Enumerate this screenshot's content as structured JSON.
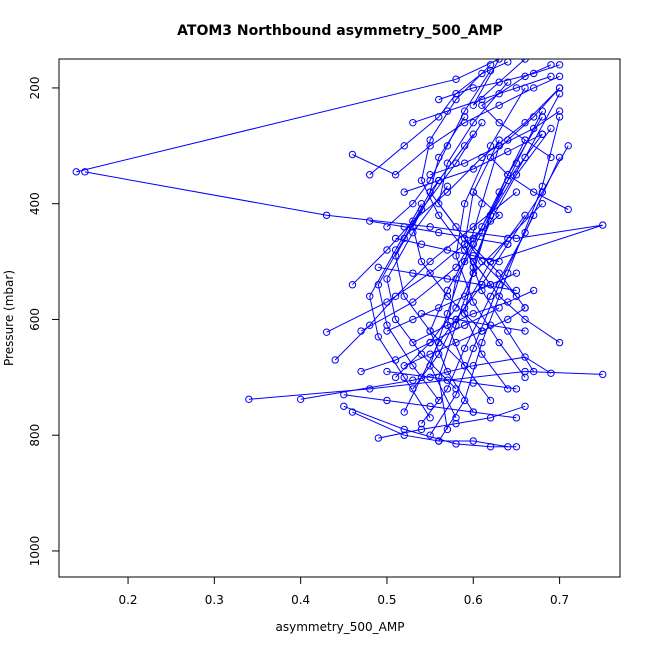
{
  "chart_data": {
    "type": "line",
    "title": "ATOM3 Northbound asymmetry_500_AMP",
    "xlabel": "asymmetry_500_AMP",
    "ylabel": "Pressure (mbar)",
    "xlim": [
      0.12,
      0.77
    ],
    "ylim": [
      1045,
      150
    ],
    "y_reversed": true,
    "x_ticks": [
      0.2,
      0.3,
      0.4,
      0.5,
      0.6,
      0.7
    ],
    "x_tick_labels": [
      "0.2",
      "0.3",
      "0.4",
      "0.5",
      "0.6",
      "0.7"
    ],
    "y_ticks": [
      200,
      400,
      600,
      800,
      1000
    ],
    "y_tick_labels": [
      "200",
      "400",
      "600",
      "800",
      "1000"
    ],
    "series_color": "#0000ff",
    "marker": "open-circle",
    "series": [
      {
        "x": [
          0.14,
          0.58,
          0.63,
          0.6,
          0.66
        ],
        "y": [
          345,
          185,
          150,
          230,
          150
        ]
      },
      {
        "x": [
          0.15,
          0.43,
          0.55,
          0.65,
          0.75,
          0.62
        ],
        "y": [
          345,
          420,
          440,
          460,
          437,
          500
        ]
      },
      {
        "x": [
          0.34,
          0.48,
          0.57,
          0.66,
          0.75
        ],
        "y": [
          738,
          720,
          705,
          690,
          695
        ]
      },
      {
        "x": [
          0.4,
          0.53,
          0.6,
          0.66,
          0.69
        ],
        "y": [
          738,
          705,
          680,
          665,
          693
        ]
      },
      {
        "x": [
          0.45,
          0.52,
          0.58,
          0.62,
          0.65
        ],
        "y": [
          750,
          790,
          815,
          820,
          820
        ]
      },
      {
        "x": [
          0.46,
          0.52,
          0.56,
          0.6,
          0.64
        ],
        "y": [
          760,
          800,
          810,
          810,
          820
        ]
      },
      {
        "x": [
          0.49,
          0.54,
          0.58,
          0.62,
          0.66
        ],
        "y": [
          805,
          790,
          780,
          770,
          750
        ]
      },
      {
        "x": [
          0.43,
          0.5,
          0.55,
          0.59,
          0.63,
          0.6
        ],
        "y": [
          622,
          570,
          520,
          470,
          420,
          380
        ]
      },
      {
        "x": [
          0.44,
          0.48,
          0.51,
          0.55,
          0.6,
          0.65
        ],
        "y": [
          670,
          610,
          560,
          500,
          440,
          380
        ]
      },
      {
        "x": [
          0.46,
          0.5,
          0.53,
          0.57,
          0.61,
          0.66,
          0.7
        ],
        "y": [
          540,
          480,
          430,
          380,
          320,
          260,
          200
        ]
      },
      {
        "x": [
          0.47,
          0.53,
          0.58,
          0.61,
          0.64,
          0.68
        ],
        "y": [
          620,
          570,
          510,
          440,
          360,
          280
        ]
      },
      {
        "x": [
          0.46,
          0.51,
          0.55,
          0.59,
          0.63,
          0.67,
          0.7
        ],
        "y": [
          315,
          350,
          300,
          260,
          230,
          200,
          180
        ]
      },
      {
        "x": [
          0.48,
          0.52,
          0.56,
          0.58,
          0.61,
          0.64
        ],
        "y": [
          350,
          300,
          250,
          210,
          175,
          155
        ]
      },
      {
        "x": [
          0.5,
          0.53,
          0.55,
          0.57,
          0.59,
          0.62
        ],
        "y": [
          440,
          400,
          360,
          300,
          240,
          170
        ]
      },
      {
        "x": [
          0.51,
          0.55,
          0.58,
          0.6,
          0.64,
          0.68
        ],
        "y": [
          700,
          640,
          580,
          520,
          460,
          400
        ]
      },
      {
        "x": [
          0.52,
          0.54,
          0.56,
          0.59,
          0.62,
          0.66
        ],
        "y": [
          760,
          700,
          640,
          580,
          500,
          420
        ]
      },
      {
        "x": [
          0.53,
          0.56,
          0.58,
          0.61,
          0.64,
          0.68,
          0.71
        ],
        "y": [
          720,
          660,
          600,
          540,
          470,
          380,
          300
        ]
      },
      {
        "x": [
          0.54,
          0.57,
          0.59,
          0.62,
          0.66,
          0.7
        ],
        "y": [
          780,
          720,
          650,
          560,
          450,
          320
        ]
      },
      {
        "x": [
          0.55,
          0.58,
          0.6,
          0.63,
          0.67
        ],
        "y": [
          800,
          730,
          650,
          540,
          420
        ]
      },
      {
        "x": [
          0.56,
          0.59,
          0.61,
          0.64,
          0.68,
          0.7
        ],
        "y": [
          810,
          740,
          640,
          520,
          370,
          250
        ]
      },
      {
        "x": [
          0.57,
          0.56,
          0.58,
          0.6,
          0.62,
          0.65,
          0.68
        ],
        "y": [
          790,
          700,
          610,
          520,
          420,
          330,
          240
        ]
      },
      {
        "x": [
          0.58,
          0.55,
          0.57,
          0.59,
          0.61,
          0.63
        ],
        "y": [
          770,
          680,
          590,
          500,
          400,
          300
        ]
      },
      {
        "x": [
          0.6,
          0.57,
          0.55,
          0.57,
          0.6,
          0.63,
          0.66
        ],
        "y": [
          760,
          690,
          620,
          550,
          470,
          380,
          290
        ]
      },
      {
        "x": [
          0.62,
          0.59,
          0.57,
          0.58,
          0.61,
          0.64,
          0.68
        ],
        "y": [
          740,
          680,
          610,
          530,
          450,
          350,
          250
        ]
      },
      {
        "x": [
          0.64,
          0.61,
          0.59,
          0.6,
          0.62,
          0.66,
          0.7
        ],
        "y": [
          720,
          660,
          590,
          510,
          420,
          320,
          210
        ]
      },
      {
        "x": [
          0.66,
          0.63,
          0.6,
          0.58,
          0.59,
          0.62,
          0.66
        ],
        "y": [
          700,
          640,
          570,
          490,
          400,
          300,
          200
        ]
      },
      {
        "x": [
          0.67,
          0.64,
          0.61,
          0.59,
          0.6,
          0.63
        ],
        "y": [
          690,
          620,
          550,
          470,
          380,
          290
        ]
      },
      {
        "x": [
          0.66,
          0.63,
          0.59,
          0.56,
          0.57,
          0.6,
          0.64
        ],
        "y": [
          580,
          520,
          460,
          400,
          330,
          260,
          190
        ]
      },
      {
        "x": [
          0.65,
          0.61,
          0.58,
          0.55,
          0.56,
          0.59
        ],
        "y": [
          560,
          500,
          440,
          380,
          320,
          250
        ]
      },
      {
        "x": [
          0.62,
          0.59,
          0.56,
          0.54,
          0.55,
          0.58,
          0.62
        ],
        "y": [
          540,
          480,
          420,
          360,
          290,
          220,
          160
        ]
      },
      {
        "x": [
          0.61,
          0.57,
          0.54,
          0.53,
          0.56,
          0.6
        ],
        "y": [
          620,
          560,
          500,
          440,
          360,
          280
        ]
      },
      {
        "x": [
          0.59,
          0.55,
          0.52,
          0.51,
          0.54,
          0.58,
          0.61
        ],
        "y": [
          680,
          620,
          560,
          490,
          410,
          330,
          260
        ]
      },
      {
        "x": [
          0.58,
          0.54,
          0.51,
          0.5,
          0.53,
          0.57
        ],
        "y": [
          720,
          660,
          600,
          530,
          450,
          370
        ]
      },
      {
        "x": [
          0.56,
          0.53,
          0.5,
          0.49,
          0.52,
          0.55,
          0.59
        ],
        "y": [
          740,
          680,
          610,
          540,
          460,
          380,
          300
        ]
      },
      {
        "x": [
          0.55,
          0.52,
          0.49,
          0.48,
          0.51,
          0.54
        ],
        "y": [
          770,
          700,
          630,
          560,
          480,
          400
        ]
      },
      {
        "x": [
          0.7,
          0.66,
          0.63,
          0.6,
          0.62,
          0.65,
          0.69
        ],
        "y": [
          640,
          600,
          560,
          500,
          430,
          350,
          270
        ]
      },
      {
        "x": [
          0.71,
          0.67,
          0.64,
          0.62,
          0.64,
          0.67,
          0.7
        ],
        "y": [
          410,
          380,
          350,
          320,
          290,
          250,
          200
        ]
      },
      {
        "x": [
          0.69,
          0.66,
          0.63,
          0.61,
          0.63,
          0.66,
          0.69
        ],
        "y": [
          320,
          290,
          260,
          230,
          210,
          180,
          160
        ]
      },
      {
        "x": [
          0.5,
          0.53,
          0.56,
          0.59,
          0.62,
          0.65
        ],
        "y": [
          620,
          600,
          580,
          560,
          540,
          520
        ]
      },
      {
        "x": [
          0.52,
          0.55,
          0.58,
          0.61,
          0.64,
          0.66
        ],
        "y": [
          680,
          660,
          640,
          620,
          600,
          580
        ]
      },
      {
        "x": [
          0.47,
          0.51,
          0.55,
          0.59,
          0.63
        ],
        "y": [
          690,
          670,
          640,
          610,
          580
        ]
      },
      {
        "x": [
          0.53,
          0.57,
          0.6,
          0.64,
          0.67
        ],
        "y": [
          640,
          610,
          590,
          570,
          550
        ]
      },
      {
        "x": [
          0.51,
          0.54,
          0.57,
          0.6,
          0.63
        ],
        "y": [
          460,
          470,
          480,
          490,
          500
        ]
      },
      {
        "x": [
          0.49,
          0.53,
          0.57,
          0.61,
          0.65
        ],
        "y": [
          510,
          520,
          530,
          540,
          550
        ]
      },
      {
        "x": [
          0.48,
          0.52,
          0.56,
          0.6,
          0.64
        ],
        "y": [
          430,
          440,
          450,
          460,
          470
        ]
      },
      {
        "x": [
          0.45,
          0.5,
          0.55,
          0.6,
          0.65
        ],
        "y": [
          730,
          740,
          750,
          760,
          770
        ]
      },
      {
        "x": [
          0.5,
          0.55,
          0.6,
          0.65
        ],
        "y": [
          690,
          700,
          710,
          720
        ]
      },
      {
        "x": [
          0.54,
          0.58,
          0.62,
          0.66
        ],
        "y": [
          590,
          600,
          610,
          620
        ]
      },
      {
        "x": [
          0.55,
          0.59,
          0.63,
          0.67,
          0.7
        ],
        "y": [
          350,
          330,
          300,
          270,
          240
        ]
      },
      {
        "x": [
          0.52,
          0.56,
          0.6,
          0.64,
          0.68
        ],
        "y": [
          380,
          360,
          340,
          310,
          280
        ]
      },
      {
        "x": [
          0.53,
          0.57,
          0.61,
          0.65,
          0.69
        ],
        "y": [
          260,
          240,
          220,
          200,
          180
        ]
      },
      {
        "x": [
          0.56,
          0.6,
          0.63,
          0.67,
          0.7
        ],
        "y": [
          220,
          200,
          190,
          175,
          160
        ]
      }
    ]
  }
}
